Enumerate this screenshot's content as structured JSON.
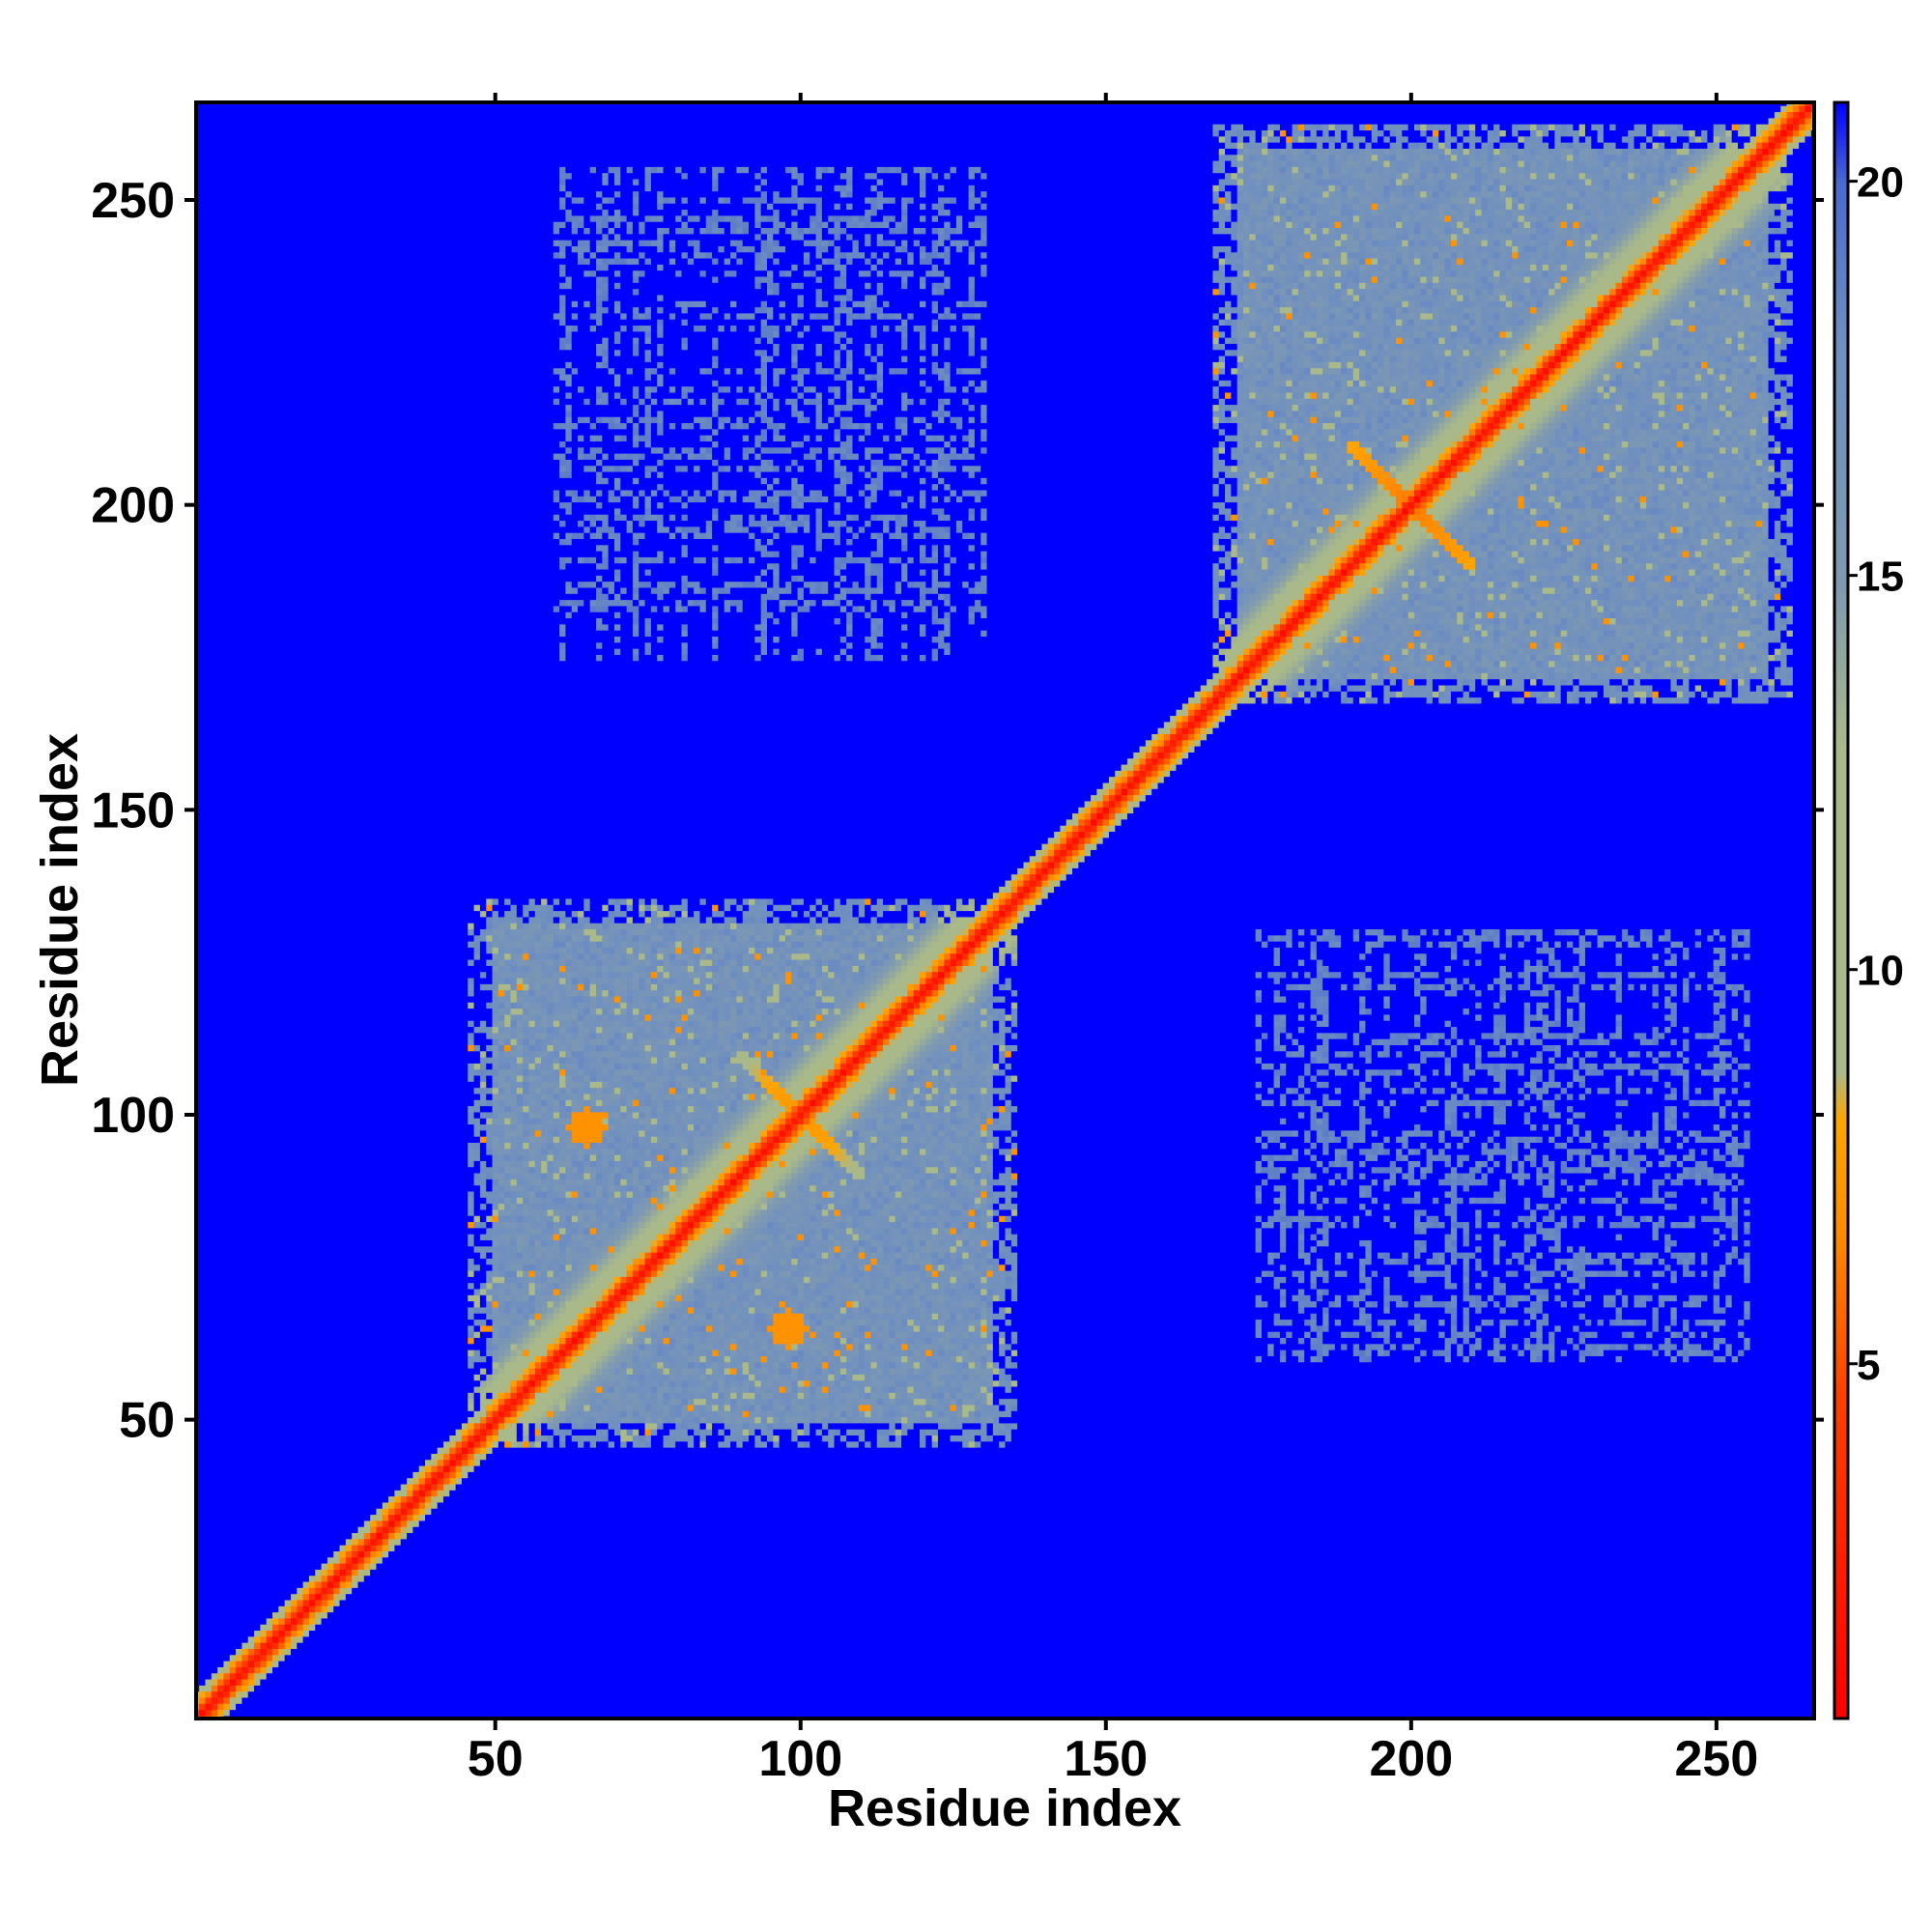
{
  "chart_data": {
    "type": "heatmap",
    "title": "",
    "xlabel": "Residue index",
    "ylabel": "Residue index",
    "xlim": [
      1,
      266
    ],
    "ylim": [
      1,
      266
    ],
    "x_ticks": [
      50,
      100,
      150,
      200,
      250
    ],
    "y_ticks": [
      50,
      100,
      150,
      200,
      250
    ],
    "colorbar": {
      "range": [
        0.5,
        21
      ],
      "ticks": [
        5,
        10,
        15,
        20
      ],
      "colors": {
        "low": "#ff0000",
        "mid_low": "#ff8c00",
        "mid": "#a9b98a",
        "high": "#6f8fc0",
        "max": "#0000ff"
      }
    },
    "background_value": 21,
    "diagonal": {
      "from": 1,
      "to": 266,
      "value_on_diagonal": 1,
      "value_gradient": "values increase away from diagonal"
    },
    "domain_blocks": [
      {
        "name": "",
        "x_range": [
          46,
          135
        ],
        "y_range": [
          46,
          135
        ],
        "typical_value": 17
      },
      {
        "name": "",
        "x_range": [
          168,
          262
        ],
        "y_range": [
          168,
          262
        ],
        "typical_value": 17
      }
    ],
    "off_diagonal_contacts": [
      {
        "x_range": [
          60,
          130
        ],
        "y_range": [
          175,
          255
        ],
        "typical_value": 18,
        "density": "sparse"
      },
      {
        "x_range": [
          175,
          255
        ],
        "y_range": [
          60,
          130
        ],
        "typical_value": 18,
        "density": "sparse"
      }
    ],
    "local_features": [
      {
        "center": [
          200,
          200
        ],
        "type": "cross",
        "value": 8
      },
      {
        "center": [
          100,
          100
        ],
        "type": "cross",
        "value": 9
      },
      {
        "center": [
          65,
          98
        ],
        "type": "spot",
        "value": 7
      },
      {
        "center": [
          98,
          65
        ],
        "type": "spot",
        "value": 7
      }
    ]
  }
}
